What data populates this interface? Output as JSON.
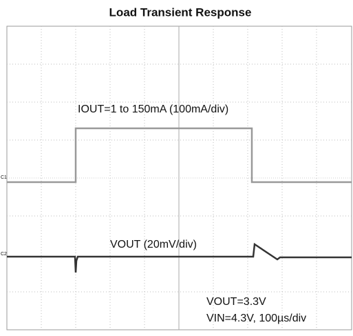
{
  "title": "Load Transient Response",
  "channels": [
    "C1",
    "C2"
  ],
  "annotations": [
    "IOUT=1 to 150mA (100mA/div)",
    "VOUT (20mV/div)",
    "VOUT=3.3V",
    "VIN=4.3V, 100µs/div"
  ]
}
